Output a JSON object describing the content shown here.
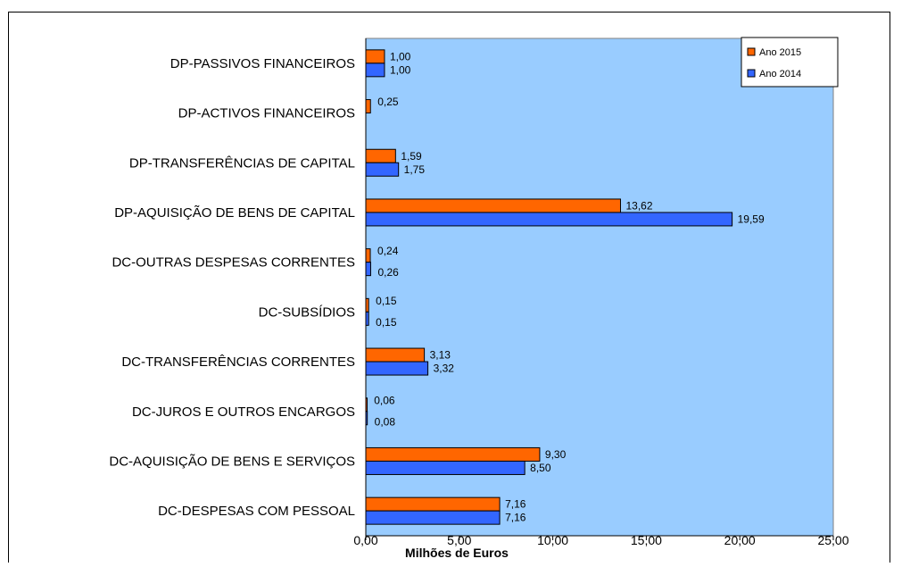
{
  "chart_data": {
    "type": "bar",
    "orientation": "horizontal",
    "categories": [
      "DP-PASSIVOS FINANCEIROS",
      "DP-ACTIVOS FINANCEIROS",
      "DP-TRANSFERÊNCIAS DE CAPITAL",
      "DP-AQUISIÇÃO DE BENS DE CAPITAL",
      "DC-OUTRAS DESPESAS CORRENTES",
      "DC-SUBSÍDIOS",
      "DC-TRANSFERÊNCIAS CORRENTES",
      "DC-JUROS E OUTROS ENCARGOS",
      "DC-AQUISIÇÃO DE BENS E SERVIÇOS",
      "DC-DESPESAS COM PESSOAL"
    ],
    "series": [
      {
        "name": "Ano 2015",
        "color": "#ff6600",
        "values": [
          1.0,
          0.25,
          1.59,
          13.62,
          0.24,
          0.15,
          3.13,
          0.06,
          9.3,
          7.16
        ],
        "labels": [
          "1,00",
          "0,25",
          "1,59",
          "13,62",
          "0,24",
          "0,15",
          "3,13",
          "0,06",
          "9,30",
          "7,16"
        ]
      },
      {
        "name": "Ano 2014",
        "color": "#3366ff",
        "values": [
          1.0,
          null,
          1.75,
          19.59,
          0.26,
          0.15,
          3.32,
          0.08,
          8.5,
          7.16
        ],
        "labels": [
          "1,00",
          "",
          "1,75",
          "19,59",
          "0,26",
          "0,15",
          "3,32",
          "0,08",
          "8,50",
          "7,16"
        ]
      }
    ],
    "xlabel": "Milhões de Euros",
    "ylabel": "",
    "xlim": [
      0,
      25
    ],
    "ticks": [
      0,
      5,
      10,
      15,
      20,
      25
    ],
    "tick_labels": [
      "0,00",
      "5,00",
      "10,00",
      "15,00",
      "20,00",
      "25,00"
    ],
    "grid": false,
    "plot_background": "#99ccff",
    "legend_position": "top-right"
  }
}
